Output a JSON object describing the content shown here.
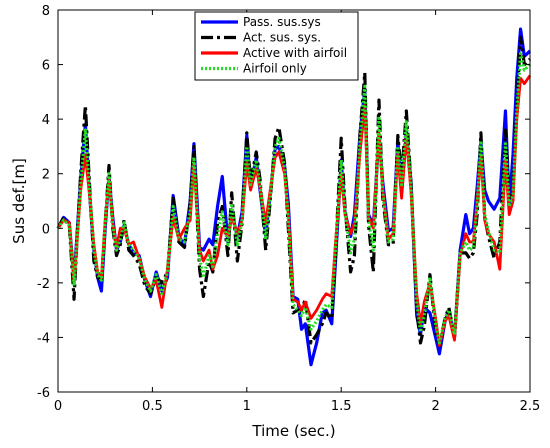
{
  "chart_data": {
    "type": "line",
    "xlabel": "Time (sec.)",
    "ylabel": "Sus def.[m]",
    "xlim": [
      0,
      2.5
    ],
    "ylim": [
      -6,
      8
    ],
    "xticks": [
      0,
      0.5,
      1,
      1.5,
      2,
      2.5
    ],
    "xtick_labels": [
      "0",
      "0.5",
      "1",
      "1.5",
      "2",
      "2.5"
    ],
    "yticks": [
      -6,
      -4,
      -2,
      0,
      2,
      4,
      6,
      8
    ],
    "ytick_labels": [
      "-6",
      "-4",
      "-2",
      "0",
      "2",
      "4",
      "6",
      "8"
    ],
    "grid": false,
    "legend_position": "top-center",
    "series": [
      {
        "name": "Pass. sus.sys",
        "color": "#0000ff",
        "dash": "solid",
        "x": [
          0,
          0.03,
          0.06,
          0.085,
          0.1,
          0.12,
          0.145,
          0.17,
          0.19,
          0.21,
          0.23,
          0.25,
          0.27,
          0.29,
          0.31,
          0.33,
          0.35,
          0.375,
          0.4,
          0.43,
          0.46,
          0.49,
          0.52,
          0.55,
          0.58,
          0.61,
          0.64,
          0.67,
          0.7,
          0.72,
          0.75,
          0.77,
          0.8,
          0.82,
          0.845,
          0.87,
          0.9,
          0.92,
          0.95,
          0.975,
          1.0,
          1.02,
          1.05,
          1.07,
          1.1,
          1.12,
          1.15,
          1.17,
          1.2,
          1.22,
          1.245,
          1.27,
          1.29,
          1.31,
          1.34,
          1.37,
          1.4,
          1.42,
          1.45,
          1.47,
          1.5,
          1.52,
          1.55,
          1.57,
          1.6,
          1.625,
          1.645,
          1.67,
          1.7,
          1.72,
          1.75,
          1.775,
          1.8,
          1.82,
          1.845,
          1.87,
          1.9,
          1.92,
          1.94,
          1.97,
          2.0,
          2.02,
          2.05,
          2.07,
          2.1,
          2.13,
          2.16,
          2.18,
          2.2,
          2.22,
          2.24,
          2.26,
          2.28,
          2.31,
          2.34,
          2.37,
          2.39,
          2.41,
          2.43,
          2.45,
          2.47,
          2.5
        ],
        "y": [
          0,
          0.4,
          0.2,
          -1.9,
          -0.3,
          1.8,
          3.8,
          1.0,
          -0.8,
          -1.8,
          -2.3,
          0.0,
          1.9,
          0.4,
          -0.8,
          -0.5,
          0.1,
          -0.6,
          -0.9,
          -1.0,
          -1.9,
          -2.5,
          -1.6,
          -2.3,
          -1.8,
          1.2,
          -0.3,
          -0.6,
          1.0,
          3.1,
          -0.7,
          -0.8,
          -0.4,
          -0.6,
          0.8,
          1.9,
          -0.5,
          0.6,
          -0.3,
          0.6,
          3.4,
          1.5,
          2.6,
          1.4,
          -0.3,
          1.0,
          2.9,
          3.0,
          2.3,
          0.9,
          -2.5,
          -2.6,
          -3.7,
          -3.5,
          -5.0,
          -4.2,
          -3.1,
          -3.0,
          -3.5,
          -1.2,
          2.5,
          0.6,
          -0.3,
          0.5,
          3.5,
          5.1,
          0.5,
          0.1,
          3.4,
          1.7,
          -0.1,
          0.0,
          3.2,
          1.3,
          3.6,
          1.7,
          -3.2,
          -3.9,
          -2.9,
          -3.1,
          -4.0,
          -4.6,
          -3.4,
          -3.0,
          -4.0,
          -0.8,
          0.5,
          -0.2,
          0.0,
          1.5,
          3.2,
          1.4,
          1.0,
          0.7,
          1.1,
          4.3,
          0.8,
          2.7,
          5.5,
          7.3,
          6.3,
          6.5
        ]
      },
      {
        "name": "Act. sus. sys.",
        "color": "#000000",
        "dash": "dashdot",
        "x": [
          0,
          0.03,
          0.06,
          0.085,
          0.1,
          0.12,
          0.145,
          0.17,
          0.19,
          0.21,
          0.23,
          0.25,
          0.27,
          0.29,
          0.31,
          0.33,
          0.35,
          0.375,
          0.4,
          0.43,
          0.46,
          0.49,
          0.52,
          0.55,
          0.58,
          0.61,
          0.64,
          0.67,
          0.7,
          0.72,
          0.75,
          0.77,
          0.8,
          0.82,
          0.845,
          0.87,
          0.9,
          0.92,
          0.95,
          0.975,
          1.0,
          1.02,
          1.05,
          1.07,
          1.1,
          1.12,
          1.15,
          1.17,
          1.2,
          1.22,
          1.245,
          1.27,
          1.29,
          1.31,
          1.34,
          1.37,
          1.4,
          1.42,
          1.45,
          1.47,
          1.5,
          1.52,
          1.55,
          1.57,
          1.6,
          1.625,
          1.645,
          1.67,
          1.7,
          1.72,
          1.75,
          1.775,
          1.8,
          1.82,
          1.845,
          1.87,
          1.9,
          1.92,
          1.94,
          1.97,
          2.0,
          2.02,
          2.05,
          2.07,
          2.1,
          2.13,
          2.16,
          2.18,
          2.2,
          2.22,
          2.24,
          2.26,
          2.28,
          2.31,
          2.34,
          2.37,
          2.39,
          2.41,
          2.43,
          2.45,
          2.47,
          2.5
        ],
        "y": [
          0,
          0.4,
          0.1,
          -2.6,
          -0.5,
          2.0,
          4.5,
          1.2,
          -1.2,
          -1.8,
          -1.9,
          0.2,
          2.3,
          0.0,
          -1.0,
          -0.6,
          0.3,
          -0.8,
          -1.0,
          -1.3,
          -2.1,
          -2.4,
          -1.8,
          -2.0,
          -1.6,
          1.1,
          -0.5,
          -0.7,
          0.9,
          3.0,
          -1.5,
          -2.5,
          -1.2,
          -1.6,
          0.2,
          0.8,
          -1.0,
          1.3,
          -1.2,
          0.2,
          3.5,
          1.7,
          2.8,
          1.8,
          -0.8,
          0.7,
          3.3,
          3.7,
          2.4,
          0.0,
          -3.1,
          -3.0,
          -3.0,
          -2.6,
          -4.2,
          -3.9,
          -3.5,
          -3.1,
          -3.3,
          -0.9,
          3.3,
          0.8,
          -1.6,
          -1.0,
          3.5,
          5.7,
          0.1,
          -1.6,
          4.7,
          1.1,
          -0.6,
          -0.6,
          3.4,
          1.9,
          4.3,
          1.6,
          -3.0,
          -4.2,
          -3.6,
          -1.7,
          -3.8,
          -4.3,
          -3.3,
          -2.9,
          -4.0,
          -0.9,
          -0.9,
          -1.1,
          -0.9,
          0.5,
          3.5,
          0.4,
          -0.3,
          -1.1,
          -0.5,
          3.6,
          1.1,
          1.3,
          4.5,
          7.0,
          6.0,
          6.2
        ]
      },
      {
        "name": "Active with airfoil",
        "color": "#ff0000",
        "dash": "solid",
        "x": [
          0,
          0.03,
          0.06,
          0.085,
          0.1,
          0.12,
          0.145,
          0.17,
          0.19,
          0.21,
          0.23,
          0.25,
          0.27,
          0.29,
          0.31,
          0.33,
          0.35,
          0.375,
          0.4,
          0.43,
          0.46,
          0.49,
          0.52,
          0.55,
          0.58,
          0.61,
          0.64,
          0.67,
          0.7,
          0.72,
          0.75,
          0.77,
          0.8,
          0.82,
          0.845,
          0.87,
          0.9,
          0.92,
          0.95,
          0.975,
          1.0,
          1.02,
          1.05,
          1.07,
          1.1,
          1.12,
          1.15,
          1.17,
          1.2,
          1.22,
          1.245,
          1.27,
          1.29,
          1.31,
          1.34,
          1.37,
          1.4,
          1.42,
          1.45,
          1.47,
          1.5,
          1.52,
          1.55,
          1.57,
          1.6,
          1.625,
          1.645,
          1.67,
          1.7,
          1.72,
          1.75,
          1.775,
          1.8,
          1.82,
          1.845,
          1.87,
          1.9,
          1.92,
          1.94,
          1.97,
          2.0,
          2.02,
          2.05,
          2.07,
          2.1,
          2.13,
          2.16,
          2.18,
          2.2,
          2.22,
          2.24,
          2.26,
          2.28,
          2.31,
          2.34,
          2.37,
          2.39,
          2.41,
          2.43,
          2.45,
          2.47,
          2.5
        ],
        "y": [
          0,
          0.3,
          0.2,
          -2.0,
          -0.6,
          1.4,
          2.7,
          1.0,
          -0.6,
          -1.6,
          -1.8,
          0.3,
          1.8,
          0.2,
          -0.7,
          0.0,
          0.0,
          -0.6,
          -0.5,
          -1.1,
          -1.8,
          -2.2,
          -1.9,
          -2.9,
          -1.5,
          0.4,
          -0.4,
          0.0,
          0.3,
          2.4,
          -0.8,
          -1.2,
          -0.8,
          -1.5,
          -1.0,
          0.0,
          -0.3,
          0.4,
          -0.2,
          0.3,
          2.4,
          1.4,
          2.2,
          1.5,
          0.2,
          1.2,
          2.6,
          2.8,
          2.0,
          0.5,
          -2.6,
          -2.7,
          -3.0,
          -2.7,
          -3.3,
          -3.0,
          -2.6,
          -2.4,
          -2.5,
          -0.5,
          2.0,
          0.5,
          -0.2,
          0.2,
          2.8,
          4.5,
          0.4,
          0.0,
          3.5,
          1.4,
          -0.4,
          -0.2,
          2.7,
          1.1,
          3.4,
          1.3,
          -2.4,
          -3.5,
          -2.7,
          -2.0,
          -3.3,
          -4.3,
          -3.4,
          -3.2,
          -4.1,
          -1.0,
          -0.2,
          -0.5,
          -0.5,
          1.0,
          2.7,
          0.3,
          -0.2,
          -0.5,
          -1.5,
          2.5,
          0.5,
          1.0,
          4.0,
          5.5,
          5.3,
          5.6
        ]
      },
      {
        "name": "Airfoil only",
        "color": "#22dd22",
        "dash": "dotted",
        "x": [
          0,
          0.03,
          0.06,
          0.085,
          0.1,
          0.12,
          0.145,
          0.17,
          0.19,
          0.21,
          0.23,
          0.25,
          0.27,
          0.29,
          0.31,
          0.33,
          0.35,
          0.375,
          0.4,
          0.43,
          0.46,
          0.49,
          0.52,
          0.55,
          0.58,
          0.61,
          0.64,
          0.67,
          0.7,
          0.72,
          0.75,
          0.77,
          0.8,
          0.82,
          0.845,
          0.87,
          0.9,
          0.92,
          0.95,
          0.975,
          1.0,
          1.02,
          1.05,
          1.07,
          1.1,
          1.12,
          1.15,
          1.17,
          1.2,
          1.22,
          1.245,
          1.27,
          1.29,
          1.31,
          1.34,
          1.37,
          1.4,
          1.42,
          1.45,
          1.47,
          1.5,
          1.52,
          1.55,
          1.57,
          1.6,
          1.625,
          1.645,
          1.67,
          1.7,
          1.72,
          1.75,
          1.775,
          1.8,
          1.82,
          1.845,
          1.87,
          1.9,
          1.92,
          1.94,
          1.97,
          2.0,
          2.02,
          2.05,
          2.07,
          2.1,
          2.13,
          2.16,
          2.18,
          2.2,
          2.22,
          2.24,
          2.26,
          2.28,
          2.31,
          2.34,
          2.37,
          2.39,
          2.41,
          2.43,
          2.45,
          2.47,
          2.5
        ],
        "y": [
          0,
          0.3,
          0.1,
          -2.1,
          -0.5,
          1.6,
          3.6,
          1.1,
          -0.8,
          -1.7,
          -1.9,
          0.2,
          2.0,
          0.1,
          -0.8,
          -0.4,
          0.2,
          -0.6,
          -0.8,
          -1.1,
          -1.9,
          -2.3,
          -1.7,
          -2.4,
          -1.6,
          0.8,
          -0.4,
          -0.5,
          0.6,
          2.6,
          -1.1,
          -1.8,
          -1.0,
          -1.4,
          -0.2,
          0.6,
          -0.6,
          0.9,
          -0.6,
          0.3,
          3.0,
          1.6,
          2.5,
          1.6,
          -0.4,
          0.9,
          3.0,
          3.3,
          2.2,
          0.3,
          -2.8,
          -3.0,
          -3.2,
          -2.9,
          -3.7,
          -3.4,
          -3.0,
          -2.8,
          -2.9,
          -0.7,
          2.5,
          0.6,
          -0.9,
          -0.4,
          3.2,
          5.2,
          0.3,
          -0.8,
          4.1,
          1.3,
          -0.5,
          -0.4,
          3.0,
          1.6,
          3.9,
          1.5,
          -2.7,
          -3.8,
          -3.2,
          -1.8,
          -3.5,
          -4.2,
          -3.3,
          -3.0,
          -3.9,
          -0.9,
          -0.5,
          -0.8,
          -0.7,
          0.8,
          3.2,
          0.5,
          -0.1,
          -0.8,
          -0.9,
          3.1,
          0.8,
          1.2,
          4.3,
          6.4,
          5.8,
          6.0
        ]
      }
    ]
  }
}
